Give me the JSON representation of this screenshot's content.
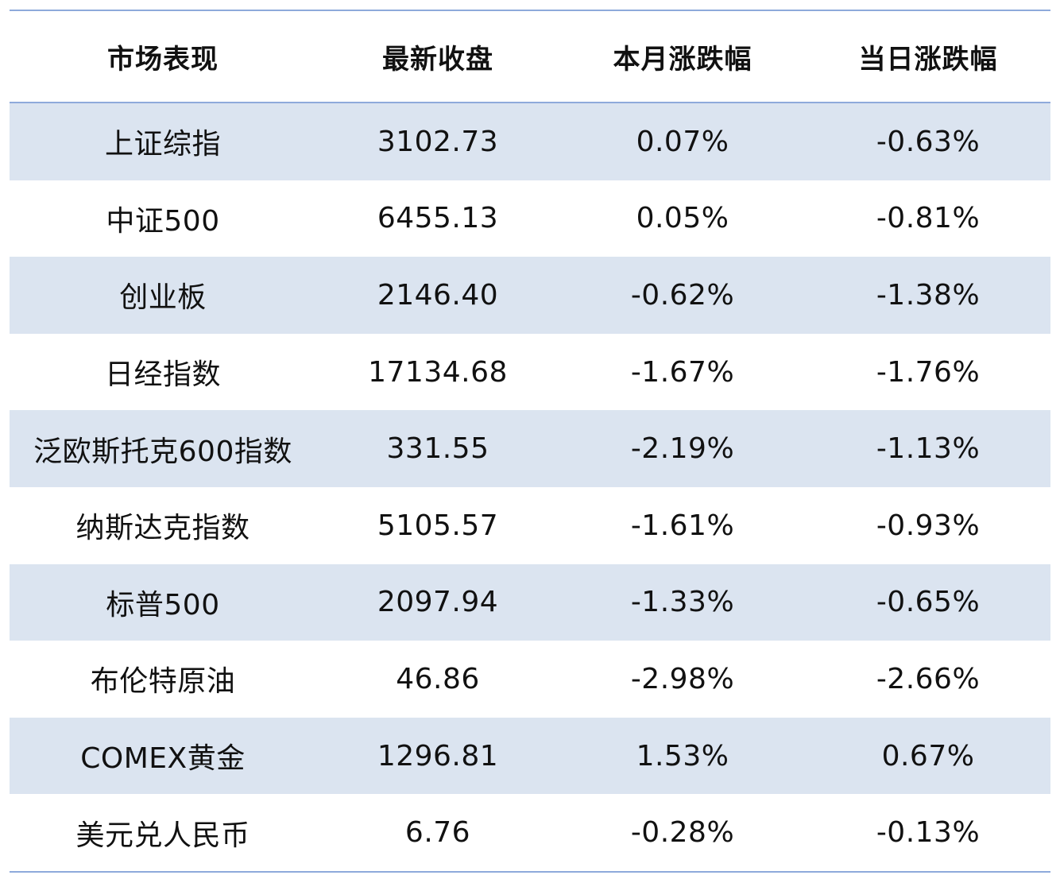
{
  "table": {
    "headers": [
      "市场表现",
      "最新收盘",
      "本月涨跌幅",
      "当日涨跌幅"
    ],
    "rows": [
      [
        "上证综指",
        "3102.73",
        "0.07%",
        "-0.63%"
      ],
      [
        "中证500",
        "6455.13",
        "0.05%",
        "-0.81%"
      ],
      [
        "创业板",
        "2146.40",
        "-0.62%",
        "-1.38%"
      ],
      [
        "日经指数",
        "17134.68",
        "-1.67%",
        "-1.76%"
      ],
      [
        "泛欧斯托克600指数",
        "331.55",
        "-2.19%",
        "-1.13%"
      ],
      [
        "纳斯达克指数",
        "5105.57",
        "-1.61%",
        "-0.93%"
      ],
      [
        "标普500",
        "2097.94",
        "-1.33%",
        "-0.65%"
      ],
      [
        "布伦特原油",
        "46.86",
        "-2.98%",
        "-2.66%"
      ],
      [
        "COMEX黄金",
        "1296.81",
        "1.53%",
        "0.67%"
      ],
      [
        "美元兑人民币",
        "6.76",
        "-0.28%",
        "-0.13%"
      ]
    ],
    "colors": {
      "rule": "#8eaadb",
      "shaded_row": "#dbe4f0",
      "plain_row": "#ffffff",
      "text": "#111111"
    }
  }
}
